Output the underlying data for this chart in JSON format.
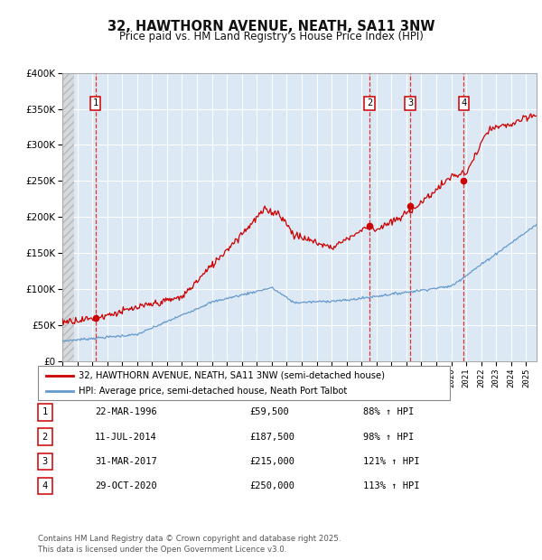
{
  "title": "32, HAWTHORN AVENUE, NEATH, SA11 3NW",
  "subtitle": "Price paid vs. HM Land Registry's House Price Index (HPI)",
  "legend_line1": "32, HAWTHORN AVENUE, NEATH, SA11 3NW (semi-detached house)",
  "legend_line2": "HPI: Average price, semi-detached house, Neath Port Talbot",
  "footer1": "Contains HM Land Registry data © Crown copyright and database right 2025.",
  "footer2": "This data is licensed under the Open Government Licence v3.0.",
  "plot_bg": "#dce9f5",
  "fig_bg": "#ffffff",
  "red_line_color": "#cc0000",
  "blue_line_color": "#6699cc",
  "grid_color": "#ffffff",
  "dashed_color": "#dd3333",
  "ylim": [
    0,
    400000
  ],
  "yticks": [
    0,
    50000,
    100000,
    150000,
    200000,
    250000,
    300000,
    350000,
    400000
  ],
  "xlim_start": 1994.0,
  "xlim_end": 2025.7,
  "sale_events": [
    {
      "num": 1,
      "date": "22-MAR-1996",
      "year": 1996.22,
      "price": 59500
    },
    {
      "num": 2,
      "date": "11-JUL-2014",
      "year": 2014.53,
      "price": 187500
    },
    {
      "num": 3,
      "date": "31-MAR-2017",
      "year": 2017.25,
      "price": 215000
    },
    {
      "num": 4,
      "date": "29-OCT-2020",
      "year": 2020.83,
      "price": 250000
    }
  ],
  "table_rows": [
    {
      "num": 1,
      "date": "22-MAR-1996",
      "price": "£59,500",
      "pct": "88% ↑ HPI"
    },
    {
      "num": 2,
      "date": "11-JUL-2014",
      "price": "£187,500",
      "pct": "98% ↑ HPI"
    },
    {
      "num": 3,
      "date": "31-MAR-2017",
      "price": "£215,000",
      "pct": "121% ↑ HPI"
    },
    {
      "num": 4,
      "date": "29-OCT-2020",
      "price": "£250,000",
      "pct": "113% ↑ HPI"
    }
  ]
}
